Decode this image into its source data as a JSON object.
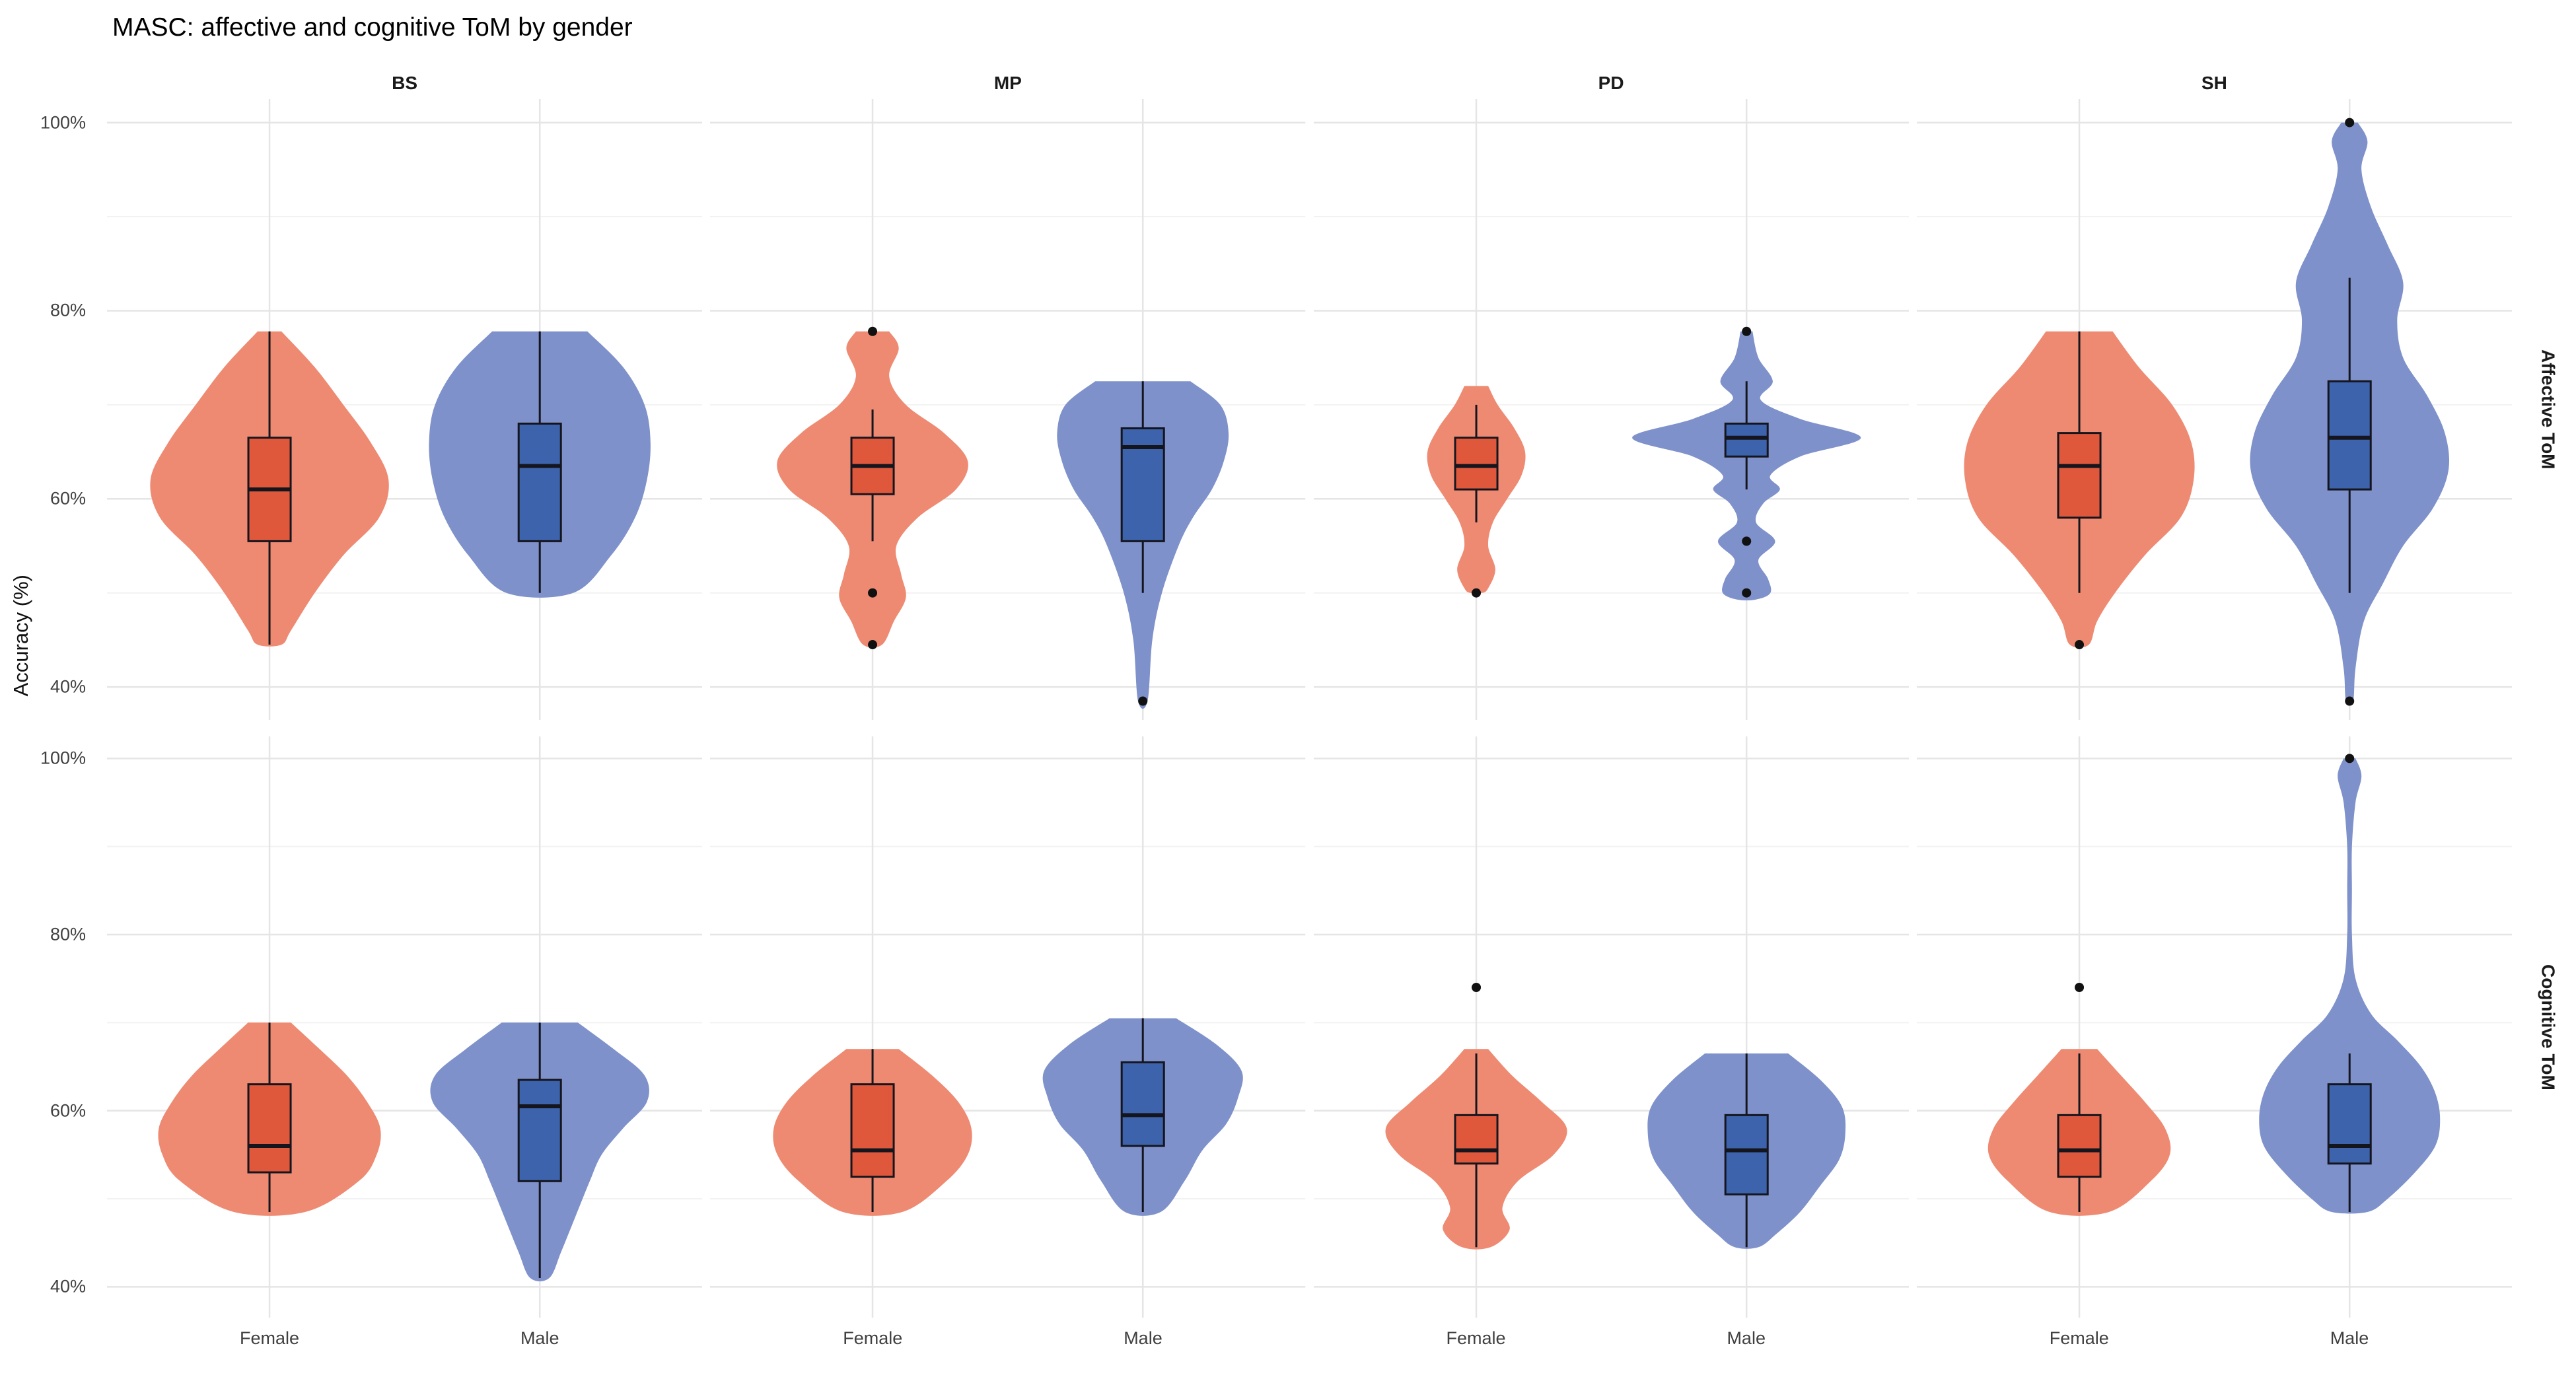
{
  "title": "MASC: affective and cognitive ToM by gender",
  "y_axis_label": "Accuracy (%)",
  "colors": {
    "female_violin": "#EF8A72",
    "female_box": "#E0583C",
    "male_violin": "#7E91CA",
    "male_box": "#3D63AC",
    "box_stroke": "#15151E",
    "outlier": "#111111",
    "grid_major": "#E5E5E5",
    "grid_minor": "#F2F2F2",
    "axis_text": "#404040",
    "strip_text": "#1A1A1A"
  },
  "chart_data": {
    "type": "violin+box",
    "title": "MASC: affective and cognitive ToM by gender",
    "ylabel": "Accuracy (%)",
    "facets_cols": [
      "BS",
      "MP",
      "PD",
      "SH"
    ],
    "facets_rows": [
      "Affective ToM",
      "Cognitive ToM"
    ],
    "x_categories": [
      "Female",
      "Male"
    ],
    "y_ticks_major": [
      40,
      60,
      80,
      100
    ],
    "y_tick_labels": [
      "40%",
      "60%",
      "80%",
      "100%"
    ],
    "y_ticks_minor": [
      50,
      70,
      90
    ],
    "y_domain": [
      36.5,
      102.5
    ],
    "x_positions": [
      0.273,
      0.727
    ],
    "violin_max_halfwidth_frac": 0.2,
    "grid": true,
    "legend": "none",
    "panels": [
      {
        "row": "Affective ToM",
        "col": "BS",
        "groups": [
          {
            "label": "Female",
            "violin": [
              [
                77.8,
                0.1
              ],
              [
                74,
                0.38
              ],
              [
                70,
                0.62
              ],
              [
                66,
                0.85
              ],
              [
                62,
                1.0
              ],
              [
                58,
                0.92
              ],
              [
                54,
                0.62
              ],
              [
                50,
                0.38
              ],
              [
                46,
                0.18
              ],
              [
                44.5,
                0.1
              ]
            ],
            "box": {
              "lo": 44.5,
              "q1": 55.5,
              "med": 61,
              "q3": 66.5,
              "hi": 77.8
            },
            "outliers": []
          },
          {
            "label": "Male",
            "violin": [
              [
                77.8,
                0.4
              ],
              [
                74,
                0.7
              ],
              [
                70,
                0.88
              ],
              [
                66,
                0.93
              ],
              [
                62,
                0.9
              ],
              [
                58,
                0.8
              ],
              [
                54,
                0.6
              ],
              [
                50,
                0.28
              ]
            ],
            "box": {
              "lo": 50,
              "q1": 55.5,
              "med": 63.5,
              "q3": 68,
              "hi": 77.8
            },
            "outliers": []
          }
        ]
      },
      {
        "row": "Affective ToM",
        "col": "MP",
        "groups": [
          {
            "label": "Female",
            "violin": [
              [
                77.8,
                0.14
              ],
              [
                76,
                0.22
              ],
              [
                73,
                0.14
              ],
              [
                70,
                0.28
              ],
              [
                67,
                0.6
              ],
              [
                64,
                0.8
              ],
              [
                61,
                0.7
              ],
              [
                58,
                0.38
              ],
              [
                55,
                0.2
              ],
              [
                52,
                0.24
              ],
              [
                49.5,
                0.28
              ],
              [
                47,
                0.18
              ],
              [
                44.5,
                0.08
              ]
            ],
            "box": {
              "lo": 55.5,
              "q1": 60.5,
              "med": 63.5,
              "q3": 66.5,
              "hi": 69.5
            },
            "outliers": [
              77.8,
              50,
              44.5
            ]
          },
          {
            "label": "Male",
            "violin": [
              [
                72.5,
                0.4
              ],
              [
                70,
                0.65
              ],
              [
                67,
                0.72
              ],
              [
                64,
                0.68
              ],
              [
                61,
                0.58
              ],
              [
                58,
                0.42
              ],
              [
                55,
                0.3
              ],
              [
                50,
                0.16
              ],
              [
                45,
                0.08
              ],
              [
                38.5,
                0.04
              ]
            ],
            "box": {
              "lo": 50,
              "q1": 55.5,
              "med": 65.5,
              "q3": 67.5,
              "hi": 72.5
            },
            "outliers": [
              38.5
            ]
          }
        ]
      },
      {
        "row": "Affective ToM",
        "col": "PD",
        "groups": [
          {
            "label": "Female",
            "violin": [
              [
                72,
                0.1
              ],
              [
                70,
                0.18
              ],
              [
                67.5,
                0.32
              ],
              [
                65,
                0.41
              ],
              [
                62.5,
                0.38
              ],
              [
                60,
                0.26
              ],
              [
                57.5,
                0.14
              ],
              [
                55,
                0.1
              ],
              [
                52.5,
                0.16
              ],
              [
                50.5,
                0.1
              ],
              [
                50,
                0.05
              ]
            ],
            "box": {
              "lo": 57.5,
              "q1": 61,
              "med": 63.5,
              "q3": 66.5,
              "hi": 70
            },
            "outliers": [
              50
            ]
          },
          {
            "label": "Male",
            "violin": [
              [
                77.8,
                0.05
              ],
              [
                75,
                0.1
              ],
              [
                72.5,
                0.22
              ],
              [
                70.5,
                0.12
              ],
              [
                68.5,
                0.45
              ],
              [
                66.5,
                0.96
              ],
              [
                64.5,
                0.45
              ],
              [
                62.5,
                0.2
              ],
              [
                61,
                0.28
              ],
              [
                59.5,
                0.14
              ],
              [
                57.5,
                0.08
              ],
              [
                55.5,
                0.24
              ],
              [
                53.5,
                0.1
              ],
              [
                51.5,
                0.18
              ],
              [
                50,
                0.2
              ],
              [
                49.3,
                0.08
              ]
            ],
            "box": {
              "lo": 61,
              "q1": 64.5,
              "med": 66.5,
              "q3": 68,
              "hi": 72.5
            },
            "outliers": [
              77.8,
              55.5,
              50
            ]
          }
        ]
      },
      {
        "row": "Affective ToM",
        "col": "SH",
        "groups": [
          {
            "label": "Female",
            "violin": [
              [
                77.8,
                0.28
              ],
              [
                74,
                0.5
              ],
              [
                70,
                0.78
              ],
              [
                66,
                0.94
              ],
              [
                62,
                0.96
              ],
              [
                58,
                0.85
              ],
              [
                54,
                0.55
              ],
              [
                50,
                0.3
              ],
              [
                47,
                0.15
              ],
              [
                44.5,
                0.08
              ]
            ],
            "box": {
              "lo": 50,
              "q1": 58,
              "med": 63.5,
              "q3": 67,
              "hi": 77.8
            },
            "outliers": [
              44.5
            ]
          },
          {
            "label": "Male",
            "violin": [
              [
                100,
                0.07
              ],
              [
                98,
                0.15
              ],
              [
                95,
                0.1
              ],
              [
                91,
                0.18
              ],
              [
                87,
                0.32
              ],
              [
                83,
                0.45
              ],
              [
                79,
                0.4
              ],
              [
                75,
                0.45
              ],
              [
                71,
                0.65
              ],
              [
                67,
                0.8
              ],
              [
                63,
                0.83
              ],
              [
                59,
                0.7
              ],
              [
                55,
                0.45
              ],
              [
                51,
                0.28
              ],
              [
                47,
                0.12
              ],
              [
                42,
                0.05
              ],
              [
                38.5,
                0.03
              ]
            ],
            "box": {
              "lo": 50,
              "q1": 61,
              "med": 66.5,
              "q3": 72.5,
              "hi": 83.5
            },
            "outliers": [
              100,
              38.5
            ]
          }
        ]
      },
      {
        "row": "Cognitive ToM",
        "col": "BS",
        "groups": [
          {
            "label": "Female",
            "violin": [
              [
                70,
                0.18
              ],
              [
                67,
                0.42
              ],
              [
                64,
                0.65
              ],
              [
                61,
                0.82
              ],
              [
                58,
                0.93
              ],
              [
                55,
                0.9
              ],
              [
                52,
                0.75
              ],
              [
                48.5,
                0.3
              ]
            ],
            "box": {
              "lo": 48.5,
              "q1": 53,
              "med": 56,
              "q3": 63,
              "hi": 70
            },
            "outliers": []
          },
          {
            "label": "Male",
            "violin": [
              [
                70,
                0.32
              ],
              [
                67,
                0.62
              ],
              [
                64,
                0.88
              ],
              [
                61,
                0.9
              ],
              [
                58,
                0.7
              ],
              [
                55,
                0.52
              ],
              [
                52,
                0.42
              ],
              [
                48,
                0.3
              ],
              [
                44,
                0.18
              ],
              [
                41,
                0.08
              ]
            ],
            "box": {
              "lo": 41,
              "q1": 52,
              "med": 60.5,
              "q3": 63.5,
              "hi": 70
            },
            "outliers": []
          }
        ]
      },
      {
        "row": "Cognitive ToM",
        "col": "MP",
        "groups": [
          {
            "label": "Female",
            "violin": [
              [
                67,
                0.22
              ],
              [
                64,
                0.5
              ],
              [
                61,
                0.72
              ],
              [
                58,
                0.83
              ],
              [
                55,
                0.8
              ],
              [
                52,
                0.62
              ],
              [
                48.5,
                0.25
              ]
            ],
            "box": {
              "lo": 48.5,
              "q1": 52.5,
              "med": 55.5,
              "q3": 63,
              "hi": 67
            },
            "outliers": []
          },
          {
            "label": "Male",
            "violin": [
              [
                70.5,
                0.28
              ],
              [
                67.5,
                0.62
              ],
              [
                64.5,
                0.83
              ],
              [
                61.5,
                0.8
              ],
              [
                58.5,
                0.7
              ],
              [
                55.5,
                0.5
              ],
              [
                52,
                0.35
              ],
              [
                48.5,
                0.15
              ]
            ],
            "box": {
              "lo": 48.5,
              "q1": 56,
              "med": 59.5,
              "q3": 65.5,
              "hi": 70.5
            },
            "outliers": []
          }
        ]
      },
      {
        "row": "Cognitive ToM",
        "col": "PD",
        "groups": [
          {
            "label": "Female",
            "violin": [
              [
                67,
                0.1
              ],
              [
                64,
                0.3
              ],
              [
                61,
                0.55
              ],
              [
                58,
                0.76
              ],
              [
                55,
                0.65
              ],
              [
                52,
                0.35
              ],
              [
                49,
                0.22
              ],
              [
                46.5,
                0.28
              ],
              [
                44.5,
                0.12
              ]
            ],
            "box": {
              "lo": 44.5,
              "q1": 54,
              "med": 55.5,
              "q3": 59.5,
              "hi": 66.5
            },
            "outliers": [
              74
            ]
          },
          {
            "label": "Male",
            "violin": [
              [
                66.5,
                0.35
              ],
              [
                63.5,
                0.62
              ],
              [
                60.5,
                0.8
              ],
              [
                57.5,
                0.83
              ],
              [
                54.5,
                0.78
              ],
              [
                51.5,
                0.62
              ],
              [
                48.5,
                0.45
              ],
              [
                46,
                0.25
              ],
              [
                44.5,
                0.1
              ]
            ],
            "box": {
              "lo": 44.5,
              "q1": 50.5,
              "med": 55.5,
              "q3": 59.5,
              "hi": 66.5
            },
            "outliers": []
          }
        ]
      },
      {
        "row": "Cognitive ToM",
        "col": "SH",
        "groups": [
          {
            "label": "Female",
            "violin": [
              [
                67,
                0.15
              ],
              [
                64,
                0.35
              ],
              [
                61,
                0.55
              ],
              [
                58,
                0.72
              ],
              [
                55,
                0.76
              ],
              [
                52,
                0.6
              ],
              [
                48.5,
                0.25
              ]
            ],
            "box": {
              "lo": 48.5,
              "q1": 52.5,
              "med": 55.5,
              "q3": 59.5,
              "hi": 66.5
            },
            "outliers": [
              74
            ]
          },
          {
            "label": "Male",
            "violin": [
              [
                100,
                0.05
              ],
              [
                98,
                0.1
              ],
              [
                95,
                0.05
              ],
              [
                90,
                0.02
              ],
              [
                85,
                0.02
              ],
              [
                80,
                0.02
              ],
              [
                75,
                0.05
              ],
              [
                71,
                0.18
              ],
              [
                68,
                0.4
              ],
              [
                65,
                0.6
              ],
              [
                62,
                0.72
              ],
              [
                59,
                0.76
              ],
              [
                56,
                0.72
              ],
              [
                53,
                0.55
              ],
              [
                50,
                0.32
              ],
              [
                48.5,
                0.15
              ]
            ],
            "box": {
              "lo": 48.5,
              "q1": 54,
              "med": 56,
              "q3": 63,
              "hi": 66.5
            },
            "outliers": [
              100
            ]
          }
        ]
      }
    ]
  }
}
